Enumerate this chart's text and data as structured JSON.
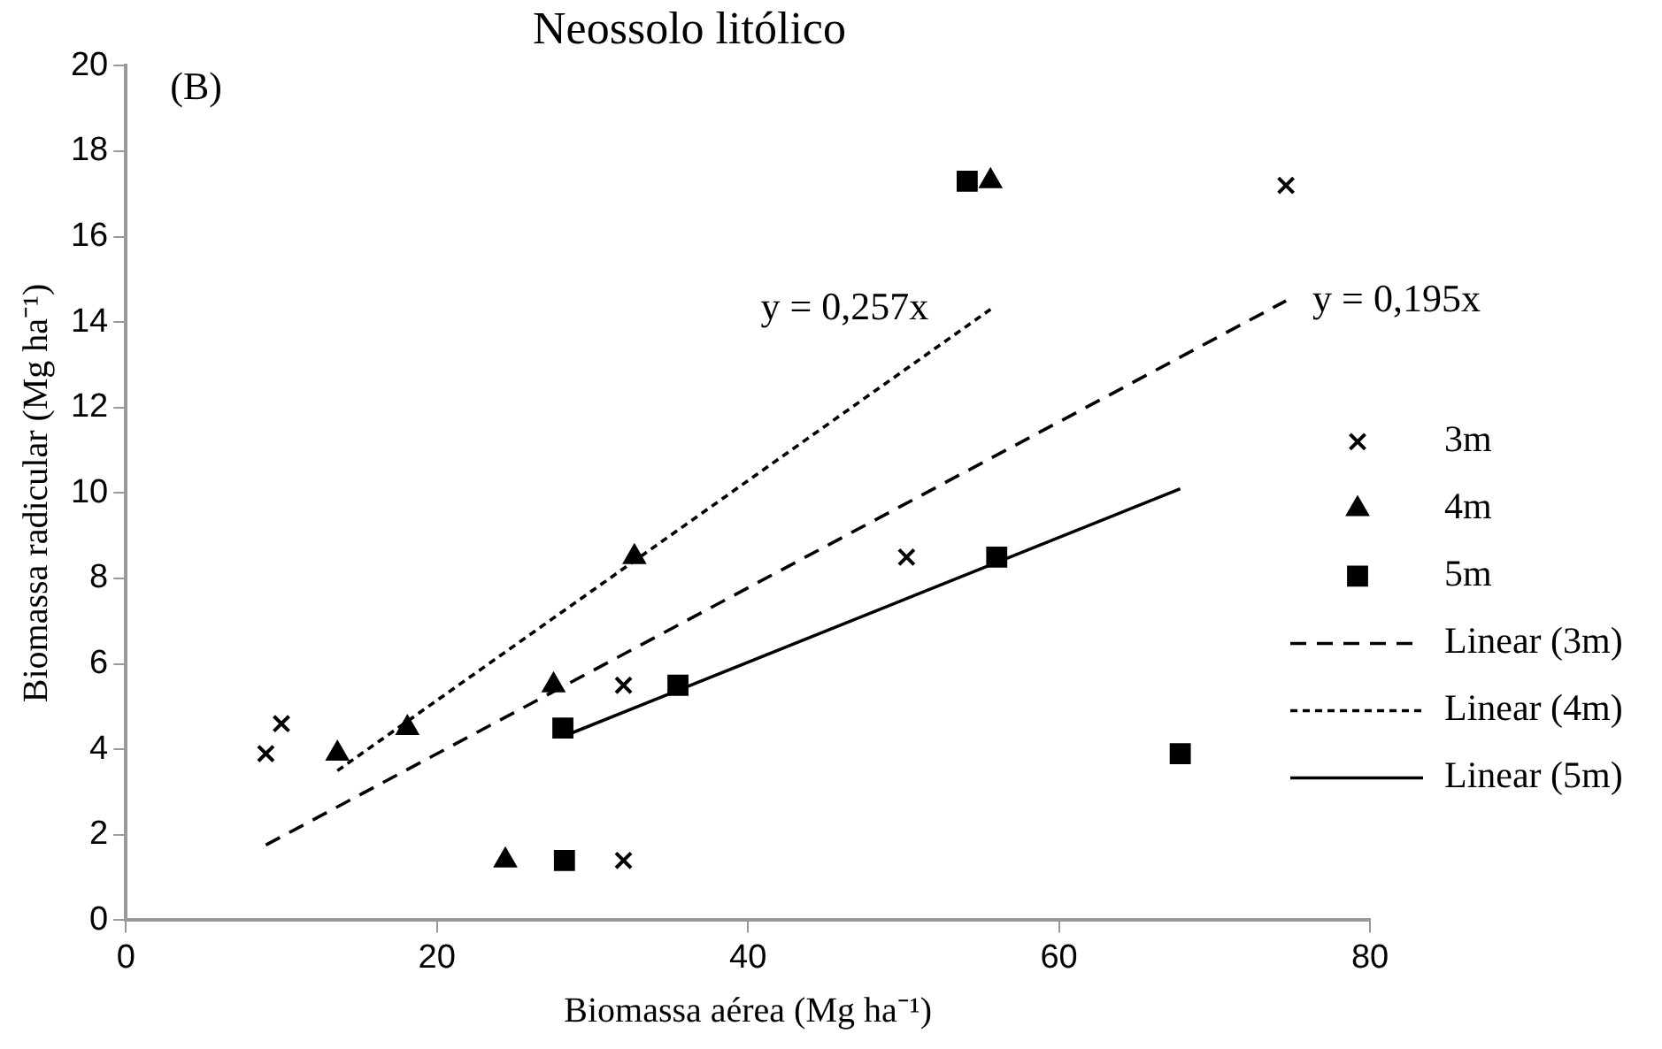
{
  "chart_data": {
    "type": "scatter",
    "title": "Neossolo litólico",
    "xlabel": "Biomassa aérea (Mg ha⁻¹)",
    "ylabel": "Biomassa radicular (Mg ha⁻¹)",
    "xlim": [
      0,
      80
    ],
    "xticks": [
      0,
      20,
      40,
      60,
      80
    ],
    "ylim": [
      0,
      20
    ],
    "yticks": [
      0,
      2,
      4,
      6,
      8,
      10,
      12,
      14,
      16,
      18,
      20
    ],
    "grid": false,
    "legend": "right",
    "annotations": [
      "(B)",
      {
        "text": "y = 0,257x",
        "x": 55.6,
        "y": 14.3
      },
      {
        "text": "y = 0,195x",
        "x": 74.6,
        "y": 14.5
      }
    ],
    "series": [
      {
        "name": "3m",
        "marker": "cross",
        "color": "#000000",
        "x": [
          9,
          10,
          32,
          32,
          50.2,
          74.6
        ],
        "values": [
          3.9,
          4.6,
          5.5,
          1.4,
          8.5,
          17.2
        ]
      },
      {
        "name": "4m",
        "marker": "triangle",
        "color": "#000000",
        "x": [
          13.6,
          18.1,
          27.5,
          32.7,
          24.4,
          55.6
        ],
        "values": [
          3.9,
          4.5,
          5.5,
          8.5,
          1.4,
          17.3
        ]
      },
      {
        "name": "5m",
        "marker": "square",
        "color": "#000000",
        "x": [
          28.1,
          35.5,
          28.2,
          56,
          67.8,
          54.1
        ],
        "values": [
          4.5,
          5.5,
          1.4,
          8.5,
          3.9,
          17.3
        ]
      },
      {
        "name": "Linear (3m)",
        "type": "line",
        "line_style": "dashed",
        "marker": "none",
        "color": "#000000",
        "x": [
          9,
          74.6
        ],
        "values": [
          1.76,
          14.5
        ]
      },
      {
        "name": "Linear (4m)",
        "type": "line",
        "line_style": "dotted",
        "marker": "none",
        "color": "#000000",
        "x": [
          13.6,
          55.6
        ],
        "values": [
          3.5,
          14.3
        ]
      },
      {
        "name": "Linear (5m)",
        "type": "line",
        "line_style": "solid",
        "marker": "none",
        "color": "#000000",
        "x": [
          28.1,
          67.8
        ],
        "values": [
          4.3,
          10.1
        ]
      }
    ]
  }
}
